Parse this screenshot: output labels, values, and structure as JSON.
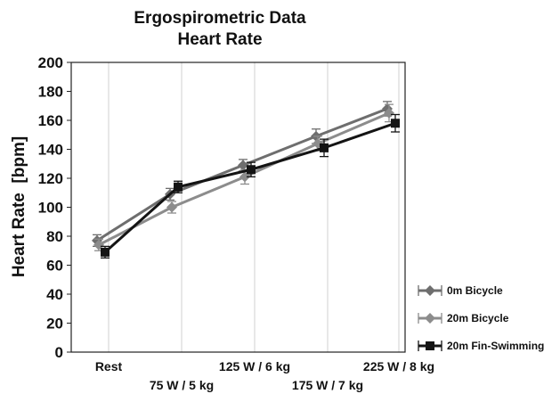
{
  "chart_data": {
    "type": "line",
    "title": "Ergospirometric Data",
    "subtitle": "Heart Rate",
    "xlabel": "",
    "ylabel": "Heart Rate  [bpm]",
    "ylim": [
      0,
      200
    ],
    "yticks": [
      0,
      20,
      40,
      60,
      80,
      100,
      120,
      140,
      160,
      180,
      200
    ],
    "categories": [
      "Rest",
      "75 W / 5 kg",
      "125 W / 6 kg",
      "175 W / 7 kg",
      "225 W / 8 kg"
    ],
    "grid": "vertical only",
    "legend_position": "right",
    "series": [
      {
        "name": "0m Bicycle",
        "marker": "diamond",
        "color": "#6e6e6e",
        "values": [
          77,
          109,
          129,
          149,
          168
        ],
        "error": [
          4,
          4,
          4,
          5,
          5
        ]
      },
      {
        "name": "20m Bicycle",
        "marker": "diamond",
        "color": "#8c8c8c",
        "values": [
          74,
          100,
          121,
          144,
          165
        ],
        "error": [
          4,
          4,
          5,
          5,
          6
        ]
      },
      {
        "name": "20m Fin-Swimming",
        "marker": "square",
        "color": "#141414",
        "values": [
          69,
          114,
          126,
          141,
          158
        ],
        "error": [
          4,
          4,
          5,
          6,
          6
        ]
      }
    ]
  }
}
